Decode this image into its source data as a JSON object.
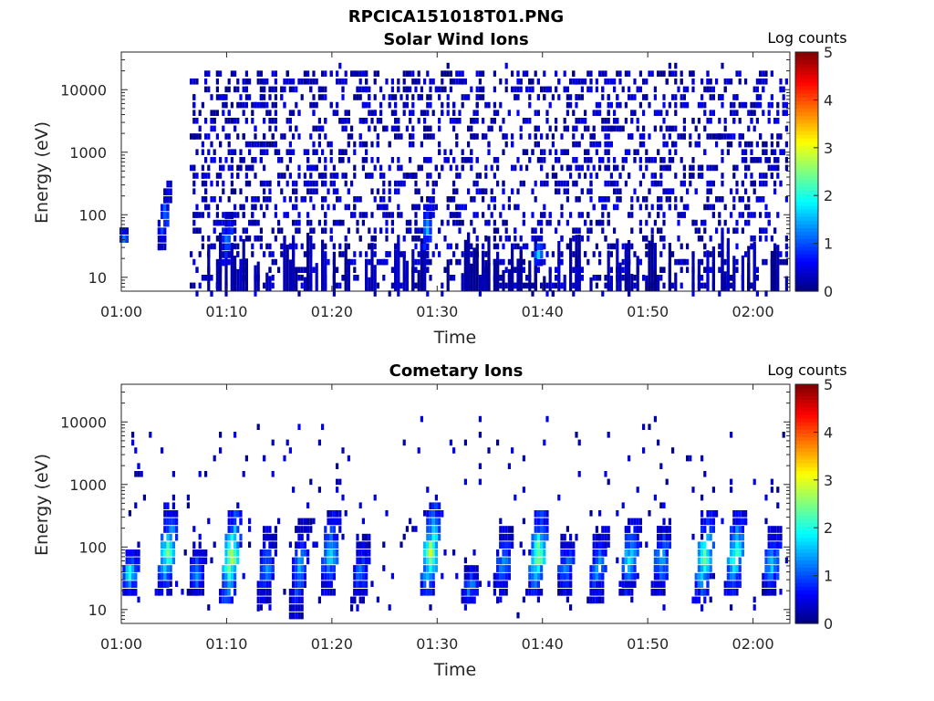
{
  "figure": {
    "filename_title": "RPCICA151018T01.PNG"
  },
  "chart_data": [
    {
      "type": "heatmap",
      "title": "Solar Wind Ions",
      "xlabel": "Time",
      "ylabel": "Energy (eV)",
      "x_ticks": [
        "01:00",
        "01:10",
        "01:20",
        "01:30",
        "01:40",
        "01:50",
        "02:00"
      ],
      "x_tick_minutes": [
        0,
        10,
        20,
        30,
        40,
        50,
        60
      ],
      "xlim_minutes": [
        0,
        63.5
      ],
      "yscale": "log",
      "y_ticks": [
        "10",
        "100",
        "1000",
        "10000"
      ],
      "y_tick_values": [
        10,
        100,
        1000,
        10000
      ],
      "ylim": [
        6,
        40000
      ],
      "colorbar": {
        "label": "Log counts",
        "ticks": [
          "0",
          "1",
          "2",
          "3",
          "4",
          "5"
        ],
        "range": [
          0,
          5
        ],
        "colormap": "jet"
      },
      "features": {
        "description_scatter": "sparse counts ~0-0.5 log scattered 10 eV to 20 keV from 01:07 onward",
        "bursts": [
          {
            "t_min": 0.3,
            "e_low": 45,
            "e_high": 60,
            "log": 1.2
          },
          {
            "t_min": 3.8,
            "e_low": 35,
            "e_high": 300,
            "log": 1.3
          },
          {
            "t_min": 9.8,
            "e_low": 20,
            "e_high": 120,
            "log": 1.4
          },
          {
            "t_min": 28.8,
            "e_low": 25,
            "e_high": 180,
            "log": 1.5
          },
          {
            "t_min": 39.5,
            "e_low": 22,
            "e_high": 35,
            "log": 1.8
          }
        ]
      }
    },
    {
      "type": "heatmap",
      "title": "Cometary Ions",
      "xlabel": "Time",
      "ylabel": "Energy (eV)",
      "x_ticks": [
        "01:00",
        "01:10",
        "01:20",
        "01:30",
        "01:40",
        "01:50",
        "02:00"
      ],
      "x_tick_minutes": [
        0,
        10,
        20,
        30,
        40,
        50,
        60
      ],
      "xlim_minutes": [
        0,
        63.5
      ],
      "yscale": "log",
      "y_ticks": [
        "10",
        "100",
        "1000",
        "10000"
      ],
      "y_tick_values": [
        10,
        100,
        1000,
        10000
      ],
      "ylim": [
        6,
        40000
      ],
      "colorbar": {
        "label": "Log counts",
        "ticks": [
          "0",
          "1",
          "2",
          "3",
          "4",
          "5"
        ],
        "range": [
          0,
          5
        ],
        "colormap": "jet"
      },
      "features": {
        "description_scatter": "sparse isolated counts up to ~10 keV",
        "bursts": [
          {
            "t_min": 0.7,
            "e_low": 20,
            "e_high": 90,
            "log": 2.0
          },
          {
            "t_min": 4.0,
            "e_low": 20,
            "e_high": 450,
            "log": 2.5
          },
          {
            "t_min": 7.0,
            "e_low": 20,
            "e_high": 100,
            "log": 1.4
          },
          {
            "t_min": 10.0,
            "e_low": 15,
            "e_high": 400,
            "log": 3.0
          },
          {
            "t_min": 13.5,
            "e_low": 15,
            "e_high": 200,
            "log": 1.4
          },
          {
            "t_min": 16.5,
            "e_low": 10,
            "e_high": 300,
            "log": 1.5
          },
          {
            "t_min": 19.5,
            "e_low": 20,
            "e_high": 400,
            "log": 1.8
          },
          {
            "t_min": 22.5,
            "e_low": 15,
            "e_high": 150,
            "log": 1.3
          },
          {
            "t_min": 29.0,
            "e_low": 20,
            "e_high": 450,
            "log": 3.0
          },
          {
            "t_min": 33.0,
            "e_low": 15,
            "e_high": 50,
            "log": 1.5
          },
          {
            "t_min": 36.0,
            "e_low": 20,
            "e_high": 200,
            "log": 1.5
          },
          {
            "t_min": 39.2,
            "e_low": 20,
            "e_high": 350,
            "log": 2.8
          },
          {
            "t_min": 42.0,
            "e_low": 20,
            "e_high": 150,
            "log": 1.5
          },
          {
            "t_min": 45.0,
            "e_low": 15,
            "e_high": 200,
            "log": 1.5
          },
          {
            "t_min": 48.0,
            "e_low": 20,
            "e_high": 300,
            "log": 2.0
          },
          {
            "t_min": 51.0,
            "e_low": 20,
            "e_high": 250,
            "log": 1.6
          },
          {
            "t_min": 55.0,
            "e_low": 15,
            "e_high": 400,
            "log": 2.6
          },
          {
            "t_min": 58.0,
            "e_low": 20,
            "e_high": 400,
            "log": 2.4
          },
          {
            "t_min": 61.5,
            "e_low": 20,
            "e_high": 200,
            "log": 1.8
          }
        ]
      }
    }
  ]
}
